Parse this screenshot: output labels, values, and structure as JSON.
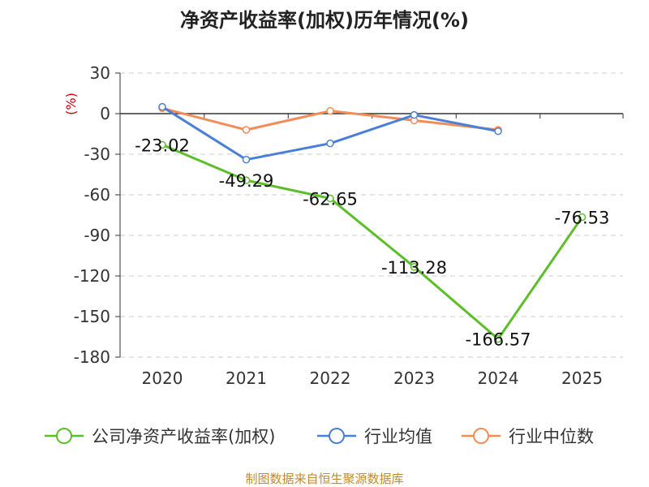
{
  "chart_data": {
    "type": "line",
    "title": "净资产收益率(加权)历年情况(%)",
    "ylabel": "(%)",
    "categories": [
      "2020",
      "2021",
      "2022",
      "2023",
      "2024",
      "2025"
    ],
    "ylim": [
      -180,
      30
    ],
    "yticks": [
      30,
      0,
      -30,
      -60,
      -90,
      -120,
      -150,
      -180
    ],
    "ytick_labels": [
      "30",
      "0",
      "-30",
      "-60",
      "-90",
      "-120",
      "-150",
      "-180"
    ],
    "grid": true,
    "legend_position": "bottom",
    "series": [
      {
        "name": "公司净资产收益率(加权)",
        "color": "#5cbf2a",
        "values": [
          -23.02,
          -49.29,
          -62.65,
          -113.28,
          -166.57,
          -76.53
        ],
        "labels": [
          "-23.02",
          "-49.29",
          "-62.65",
          "-113.28",
          "-166.57",
          "-76.53"
        ]
      },
      {
        "name": "行业均值",
        "color": "#4a7fd6",
        "values": [
          5,
          -34,
          -22,
          -1,
          -13,
          null
        ]
      },
      {
        "name": "行业中位数",
        "color": "#f28c58",
        "values": [
          4,
          -12,
          2,
          -5,
          -12,
          null
        ]
      }
    ]
  },
  "source": "制图数据来自恒生聚源数据库"
}
